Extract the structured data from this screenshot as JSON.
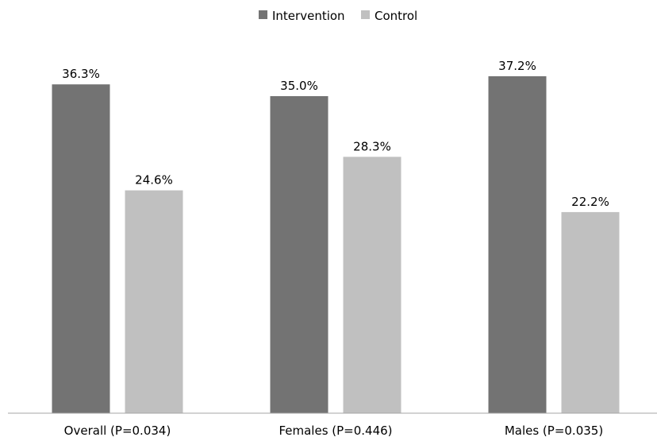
{
  "chart_data": {
    "type": "bar",
    "categories": [
      "Overall (P=0.034)",
      "Females (P=0.446)",
      "Males (P=0.035)"
    ],
    "series": [
      {
        "name": "Intervention",
        "values": [
          36.3,
          35.0,
          37.2
        ],
        "labels": [
          "36.3%",
          "35.0%",
          "37.2%"
        ],
        "color": "#737373"
      },
      {
        "name": "Control",
        "values": [
          24.6,
          28.3,
          22.2
        ],
        "labels": [
          "24.6%",
          "28.3%",
          "22.2%"
        ],
        "color": "#c0c0c0"
      }
    ],
    "ylim": [
      0,
      40
    ],
    "legend_position": "top-center",
    "grid": false,
    "axis_line_color": "#a6a6a6"
  }
}
